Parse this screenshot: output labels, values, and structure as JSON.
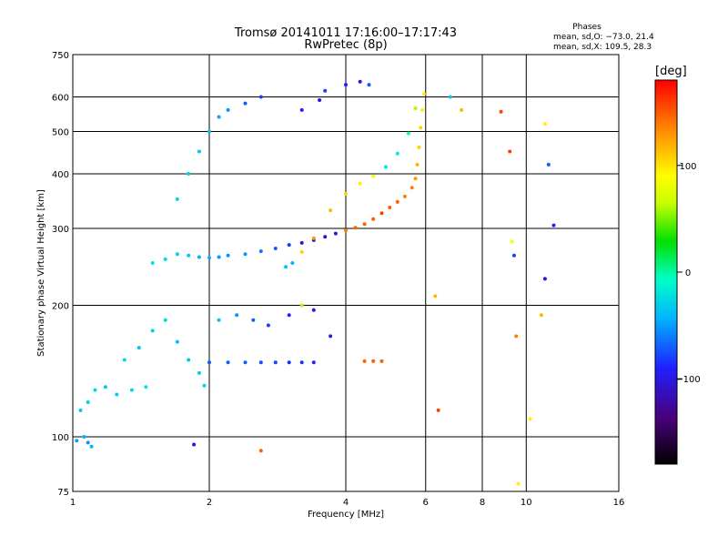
{
  "header": {
    "title": "Tromsø 20141011 17:16:00–17:17:43",
    "subtitle": "RwPretec (8p)",
    "phases": {
      "label": "Phases",
      "line_o": "mean, sd,O: −73.0, 21.4",
      "line_x": "mean, sd,X: 109.5, 28.3"
    }
  },
  "colorbar": {
    "unit": "[deg]",
    "range": [
      -180,
      180
    ],
    "ticks": [
      100,
      0,
      -100
    ],
    "tick_labels": [
      "100",
      "0",
      "−100"
    ]
  },
  "colors": {
    "gridline": "#000000",
    "axis": "#000000"
  },
  "chart_data": {
    "type": "scatter",
    "xlabel": "Frequency [MHz]",
    "ylabel": "Stationary phase Virtual Height [km]",
    "xscale": "log",
    "yscale": "log",
    "xlim": [
      1,
      16
    ],
    "ylim": [
      75,
      750
    ],
    "x_ticks": [
      1,
      2,
      4,
      6,
      8,
      10,
      16
    ],
    "x_tick_labels": [
      "1",
      "2",
      "4",
      "6",
      "8",
      "10",
      "16"
    ],
    "y_ticks": [
      75,
      100,
      200,
      300,
      400,
      500,
      600,
      750
    ],
    "y_tick_labels": [
      "75",
      "100",
      "200",
      "300",
      "400",
      "500",
      "600",
      "750"
    ],
    "x_gridlines": [
      2,
      4,
      6,
      8,
      10
    ],
    "y_gridlines": [
      100,
      200,
      300,
      400,
      500,
      600
    ],
    "color_variable": "phase [deg]",
    "points": [
      [
        1.02,
        98,
        -55
      ],
      [
        1.06,
        100,
        -50
      ],
      [
        1.08,
        97,
        -60
      ],
      [
        1.1,
        95,
        -45
      ],
      [
        1.04,
        115,
        -40
      ],
      [
        1.08,
        120,
        -35
      ],
      [
        1.12,
        128,
        -30
      ],
      [
        1.18,
        130,
        -40
      ],
      [
        1.25,
        125,
        -35
      ],
      [
        1.35,
        128,
        -30
      ],
      [
        1.45,
        130,
        -25
      ],
      [
        1.3,
        150,
        -30
      ],
      [
        1.4,
        160,
        -40
      ],
      [
        1.5,
        175,
        -35
      ],
      [
        1.6,
        185,
        -30
      ],
      [
        1.7,
        165,
        -45
      ],
      [
        1.8,
        150,
        -40
      ],
      [
        1.9,
        140,
        -35
      ],
      [
        1.95,
        131,
        -30
      ],
      [
        1.5,
        250,
        -25
      ],
      [
        1.6,
        255,
        -30
      ],
      [
        1.7,
        262,
        -35
      ],
      [
        1.8,
        260,
        -40
      ],
      [
        1.9,
        258,
        -50
      ],
      [
        2.0,
        257,
        -50
      ],
      [
        2.1,
        258,
        -60
      ],
      [
        2.2,
        260,
        -60
      ],
      [
        2.4,
        262,
        -60
      ],
      [
        2.6,
        266,
        -70
      ],
      [
        2.8,
        270,
        -80
      ],
      [
        3.0,
        275,
        -90
      ],
      [
        3.2,
        278,
        -110
      ],
      [
        3.4,
        282,
        -110
      ],
      [
        3.6,
        287,
        -115
      ],
      [
        3.8,
        292,
        -110
      ],
      [
        4.0,
        297,
        140
      ],
      [
        4.2,
        301,
        150
      ],
      [
        4.4,
        307,
        150
      ],
      [
        4.6,
        315,
        150
      ],
      [
        4.8,
        325,
        160
      ],
      [
        5.0,
        335,
        150
      ],
      [
        5.2,
        345,
        150
      ],
      [
        5.4,
        355,
        140
      ],
      [
        5.6,
        372,
        140
      ],
      [
        5.7,
        390,
        130
      ],
      [
        5.75,
        420,
        120
      ],
      [
        5.8,
        460,
        110
      ],
      [
        5.85,
        510,
        110
      ],
      [
        5.9,
        560,
        100
      ],
      [
        5.95,
        610,
        100
      ],
      [
        2.95,
        245,
        -40
      ],
      [
        3.05,
        250,
        -50
      ],
      [
        3.2,
        265,
        110
      ],
      [
        3.4,
        285,
        130
      ],
      [
        3.7,
        330,
        120
      ],
      [
        4.0,
        360,
        110
      ],
      [
        4.3,
        380,
        100
      ],
      [
        4.6,
        395,
        90
      ],
      [
        4.9,
        415,
        -25
      ],
      [
        5.2,
        445,
        -20
      ],
      [
        5.5,
        495,
        -10
      ],
      [
        5.7,
        565,
        60
      ],
      [
        3.6,
        620,
        -90
      ],
      [
        4.0,
        640,
        -100
      ],
      [
        4.3,
        650,
        -110
      ],
      [
        4.5,
        640,
        -80
      ],
      [
        3.2,
        560,
        -100
      ],
      [
        3.5,
        590,
        -110
      ],
      [
        2.0,
        148,
        -80
      ],
      [
        2.2,
        148,
        -80
      ],
      [
        2.4,
        148,
        -80
      ],
      [
        2.6,
        148,
        -85
      ],
      [
        2.8,
        148,
        -90
      ],
      [
        3.0,
        148,
        -95
      ],
      [
        3.2,
        148,
        -95
      ],
      [
        3.4,
        148,
        -100
      ],
      [
        4.4,
        149,
        150
      ],
      [
        4.6,
        149,
        150
      ],
      [
        4.8,
        149,
        150
      ],
      [
        2.1,
        185,
        -40
      ],
      [
        2.3,
        190,
        -60
      ],
      [
        2.5,
        185,
        -80
      ],
      [
        2.7,
        180,
        -90
      ],
      [
        3.0,
        190,
        -100
      ],
      [
        3.2,
        200,
        60
      ],
      [
        3.4,
        195,
        -110
      ],
      [
        3.7,
        170,
        -100
      ],
      [
        1.7,
        350,
        -30
      ],
      [
        1.8,
        400,
        -35
      ],
      [
        1.9,
        450,
        -40
      ],
      [
        2.0,
        500,
        -45
      ],
      [
        2.1,
        540,
        -55
      ],
      [
        2.2,
        560,
        -60
      ],
      [
        2.4,
        580,
        -80
      ],
      [
        2.6,
        600,
        -90
      ],
      [
        6.3,
        210,
        120
      ],
      [
        6.4,
        115,
        160
      ],
      [
        6.8,
        600,
        -40
      ],
      [
        7.2,
        560,
        120
      ],
      [
        8.8,
        555,
        160
      ],
      [
        9.2,
        450,
        160
      ],
      [
        9.3,
        280,
        90
      ],
      [
        9.4,
        260,
        -90
      ],
      [
        9.5,
        170,
        140
      ],
      [
        9.6,
        78,
        100
      ],
      [
        10.2,
        110,
        100
      ],
      [
        11.0,
        520,
        100
      ],
      [
        11.2,
        420,
        -80
      ],
      [
        11.5,
        305,
        -100
      ],
      [
        11.0,
        230,
        -110
      ],
      [
        10.8,
        190,
        120
      ],
      [
        1.85,
        96,
        -110
      ],
      [
        2.6,
        93,
        150
      ]
    ]
  }
}
